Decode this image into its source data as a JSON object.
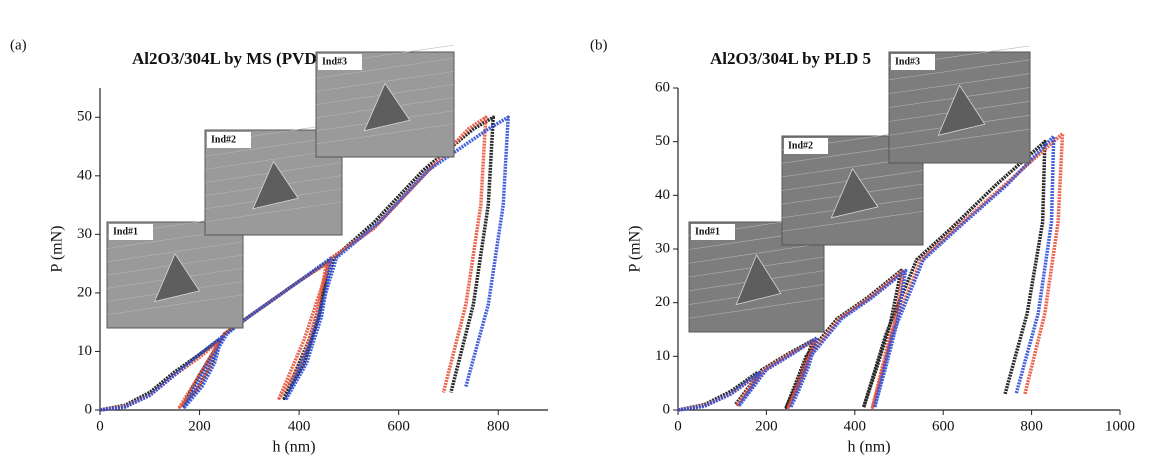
{
  "chart_data": [
    {
      "type": "line",
      "panel": "(a)",
      "title": "Al2O3/304L by MS (PVD)",
      "x_label": "h (nm)",
      "y_label": "P (mN)",
      "xlim": [
        0,
        900
      ],
      "ylim": [
        0,
        55
      ],
      "xticks": [
        0,
        200,
        400,
        600,
        800
      ],
      "yticks": [
        0,
        10,
        20,
        30,
        40,
        50
      ],
      "insets": [
        "Ind#1",
        "Ind#2",
        "Ind#3"
      ],
      "series": [
        {
          "color": "#111111",
          "x": [
            0,
            50,
            100,
            150,
            200,
            240,
            225,
            200,
            165,
            200,
            250,
            300,
            350,
            400,
            460,
            440,
            410,
            370,
            420,
            470,
            550,
            650,
            750,
            790,
            780,
            750,
            705
          ],
          "values": [
            0,
            0.8,
            3,
            6.5,
            9.5,
            12,
            8,
            4,
            0.5,
            6,
            13,
            16,
            19,
            22,
            25.5,
            16,
            8,
            2,
            12,
            26,
            32,
            41,
            48,
            50,
            35,
            18,
            3
          ]
        },
        {
          "color": "#e8533a",
          "x": [
            0,
            50,
            100,
            150,
            200,
            235,
            220,
            195,
            160,
            200,
            250,
            300,
            350,
            400,
            455,
            435,
            405,
            360,
            410,
            465,
            550,
            650,
            740,
            775,
            765,
            735,
            690
          ],
          "values": [
            0,
            0.6,
            2.5,
            6,
            9,
            11.5,
            7.5,
            3.5,
            0.5,
            6,
            13,
            16,
            19,
            22,
            25,
            16,
            8,
            2,
            12,
            26,
            31,
            40,
            48,
            50,
            35,
            18,
            3
          ]
        },
        {
          "color": "#2f4fd6",
          "x": [
            0,
            50,
            100,
            150,
            200,
            245,
            230,
            205,
            170,
            205,
            255,
            300,
            350,
            400,
            465,
            445,
            415,
            375,
            425,
            475,
            560,
            660,
            780,
            820,
            810,
            780,
            735
          ],
          "values": [
            0,
            0.5,
            2.5,
            6,
            9.5,
            12.5,
            8,
            4,
            0.5,
            6,
            13,
            16,
            19,
            22,
            26,
            16,
            8,
            2,
            12,
            26,
            32,
            41,
            48,
            50,
            35,
            18,
            4
          ]
        }
      ]
    },
    {
      "type": "line",
      "panel": "(b)",
      "title": "Al2O3/304L by PLD 5",
      "x_label": "h (nm)",
      "y_label": "P (mN)",
      "xlim": [
        0,
        1000
      ],
      "ylim": [
        0,
        60
      ],
      "xticks": [
        0,
        200,
        400,
        600,
        800,
        1000
      ],
      "yticks": [
        0,
        10,
        20,
        30,
        40,
        50,
        60
      ],
      "insets": [
        "Ind#1",
        "Ind#2",
        "Ind#3"
      ],
      "series": [
        {
          "color": "#111111",
          "x": [
            0,
            60,
            120,
            180,
            160,
            130,
            190,
            250,
            305,
            285,
            265,
            245,
            290,
            360,
            430,
            505,
            480,
            450,
            420,
            470,
            540,
            620,
            720,
            830,
            825,
            790,
            740
          ],
          "values": [
            0,
            1,
            3.5,
            7,
            4,
            1,
            7.5,
            10.5,
            13,
            8,
            4,
            0.5,
            10,
            17,
            21,
            26,
            16,
            8,
            0.5,
            14,
            28,
            34,
            42,
            50,
            35,
            18,
            3
          ]
        },
        {
          "color": "#e8533a",
          "x": [
            0,
            60,
            120,
            180,
            160,
            135,
            195,
            255,
            310,
            290,
            270,
            250,
            295,
            365,
            435,
            510,
            490,
            465,
            440,
            480,
            550,
            630,
            740,
            870,
            860,
            830,
            785
          ],
          "values": [
            0,
            0.8,
            3,
            6.5,
            4,
            1,
            7.5,
            10.5,
            13,
            8,
            4,
            0.5,
            10,
            17,
            21,
            26,
            16,
            8,
            0.5,
            14,
            28,
            34,
            42,
            51.5,
            35,
            18,
            3
          ]
        },
        {
          "color": "#2f4fd6",
          "x": [
            0,
            60,
            120,
            185,
            165,
            140,
            200,
            260,
            315,
            295,
            275,
            255,
            300,
            370,
            440,
            515,
            495,
            470,
            445,
            485,
            555,
            635,
            745,
            850,
            845,
            815,
            765
          ],
          "values": [
            0,
            0.7,
            3,
            7,
            4,
            1,
            7.5,
            10.5,
            13.5,
            8,
            4,
            0.5,
            10,
            17,
            21,
            26,
            16,
            8,
            0.5,
            14,
            28,
            34,
            42,
            51,
            35,
            18,
            3
          ]
        }
      ]
    }
  ]
}
